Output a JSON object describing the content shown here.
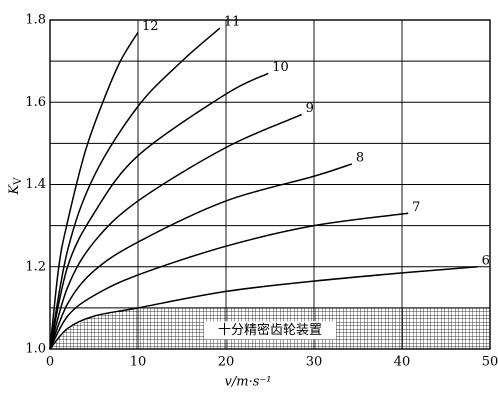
{
  "chart_data": {
    "type": "line",
    "x_label": "v/m·s⁻¹",
    "y_label": "K",
    "y_label_sub": "V",
    "annotation": "十分精密齿轮装置",
    "xlim": [
      0,
      50
    ],
    "xticks": [
      0,
      10,
      20,
      30,
      40,
      50
    ],
    "ylim": [
      1.0,
      1.8
    ],
    "yticks": [
      {
        "value": 1.0,
        "label": "1.0"
      },
      1.2,
      1.4,
      1.6,
      1.8
    ],
    "y_minor_grid": [
      1.1,
      1.3,
      1.5,
      1.7
    ],
    "grid": true,
    "series": [
      {
        "name": "6",
        "color": "#000000",
        "x": [
          0,
          2,
          5,
          10,
          20,
          30,
          40,
          48.6
        ],
        "values": [
          1.0,
          1.05,
          1.08,
          1.1,
          1.14,
          1.165,
          1.185,
          1.2
        ]
      },
      {
        "name": "7",
        "color": "#000000",
        "x": [
          0,
          2,
          5,
          10,
          20,
          30,
          40.7
        ],
        "values": [
          1.0,
          1.08,
          1.13,
          1.18,
          1.25,
          1.3,
          1.33
        ]
      },
      {
        "name": "8",
        "color": "#000000",
        "x": [
          0,
          2,
          5,
          10,
          20,
          30,
          34.3
        ],
        "values": [
          1.0,
          1.11,
          1.19,
          1.26,
          1.36,
          1.42,
          1.45
        ]
      },
      {
        "name": "9",
        "color": "#000000",
        "x": [
          0,
          2,
          5,
          10,
          20,
          28.6
        ],
        "values": [
          1.0,
          1.15,
          1.26,
          1.36,
          1.49,
          1.57
        ]
      },
      {
        "name": "10",
        "color": "#000000",
        "x": [
          0,
          2,
          5,
          10,
          20,
          24.8
        ],
        "values": [
          1.0,
          1.2,
          1.33,
          1.47,
          1.62,
          1.67
        ]
      },
      {
        "name": "11",
        "color": "#000000",
        "x": [
          0,
          2,
          5,
          10,
          15,
          19.3
        ],
        "values": [
          1.0,
          1.24,
          1.42,
          1.59,
          1.7,
          1.78
        ]
      },
      {
        "name": "12",
        "color": "#000000",
        "x": [
          0,
          1,
          2,
          4,
          6,
          8,
          10
        ],
        "values": [
          1.0,
          1.2,
          1.31,
          1.48,
          1.6,
          1.7,
          1.77
        ]
      }
    ]
  }
}
